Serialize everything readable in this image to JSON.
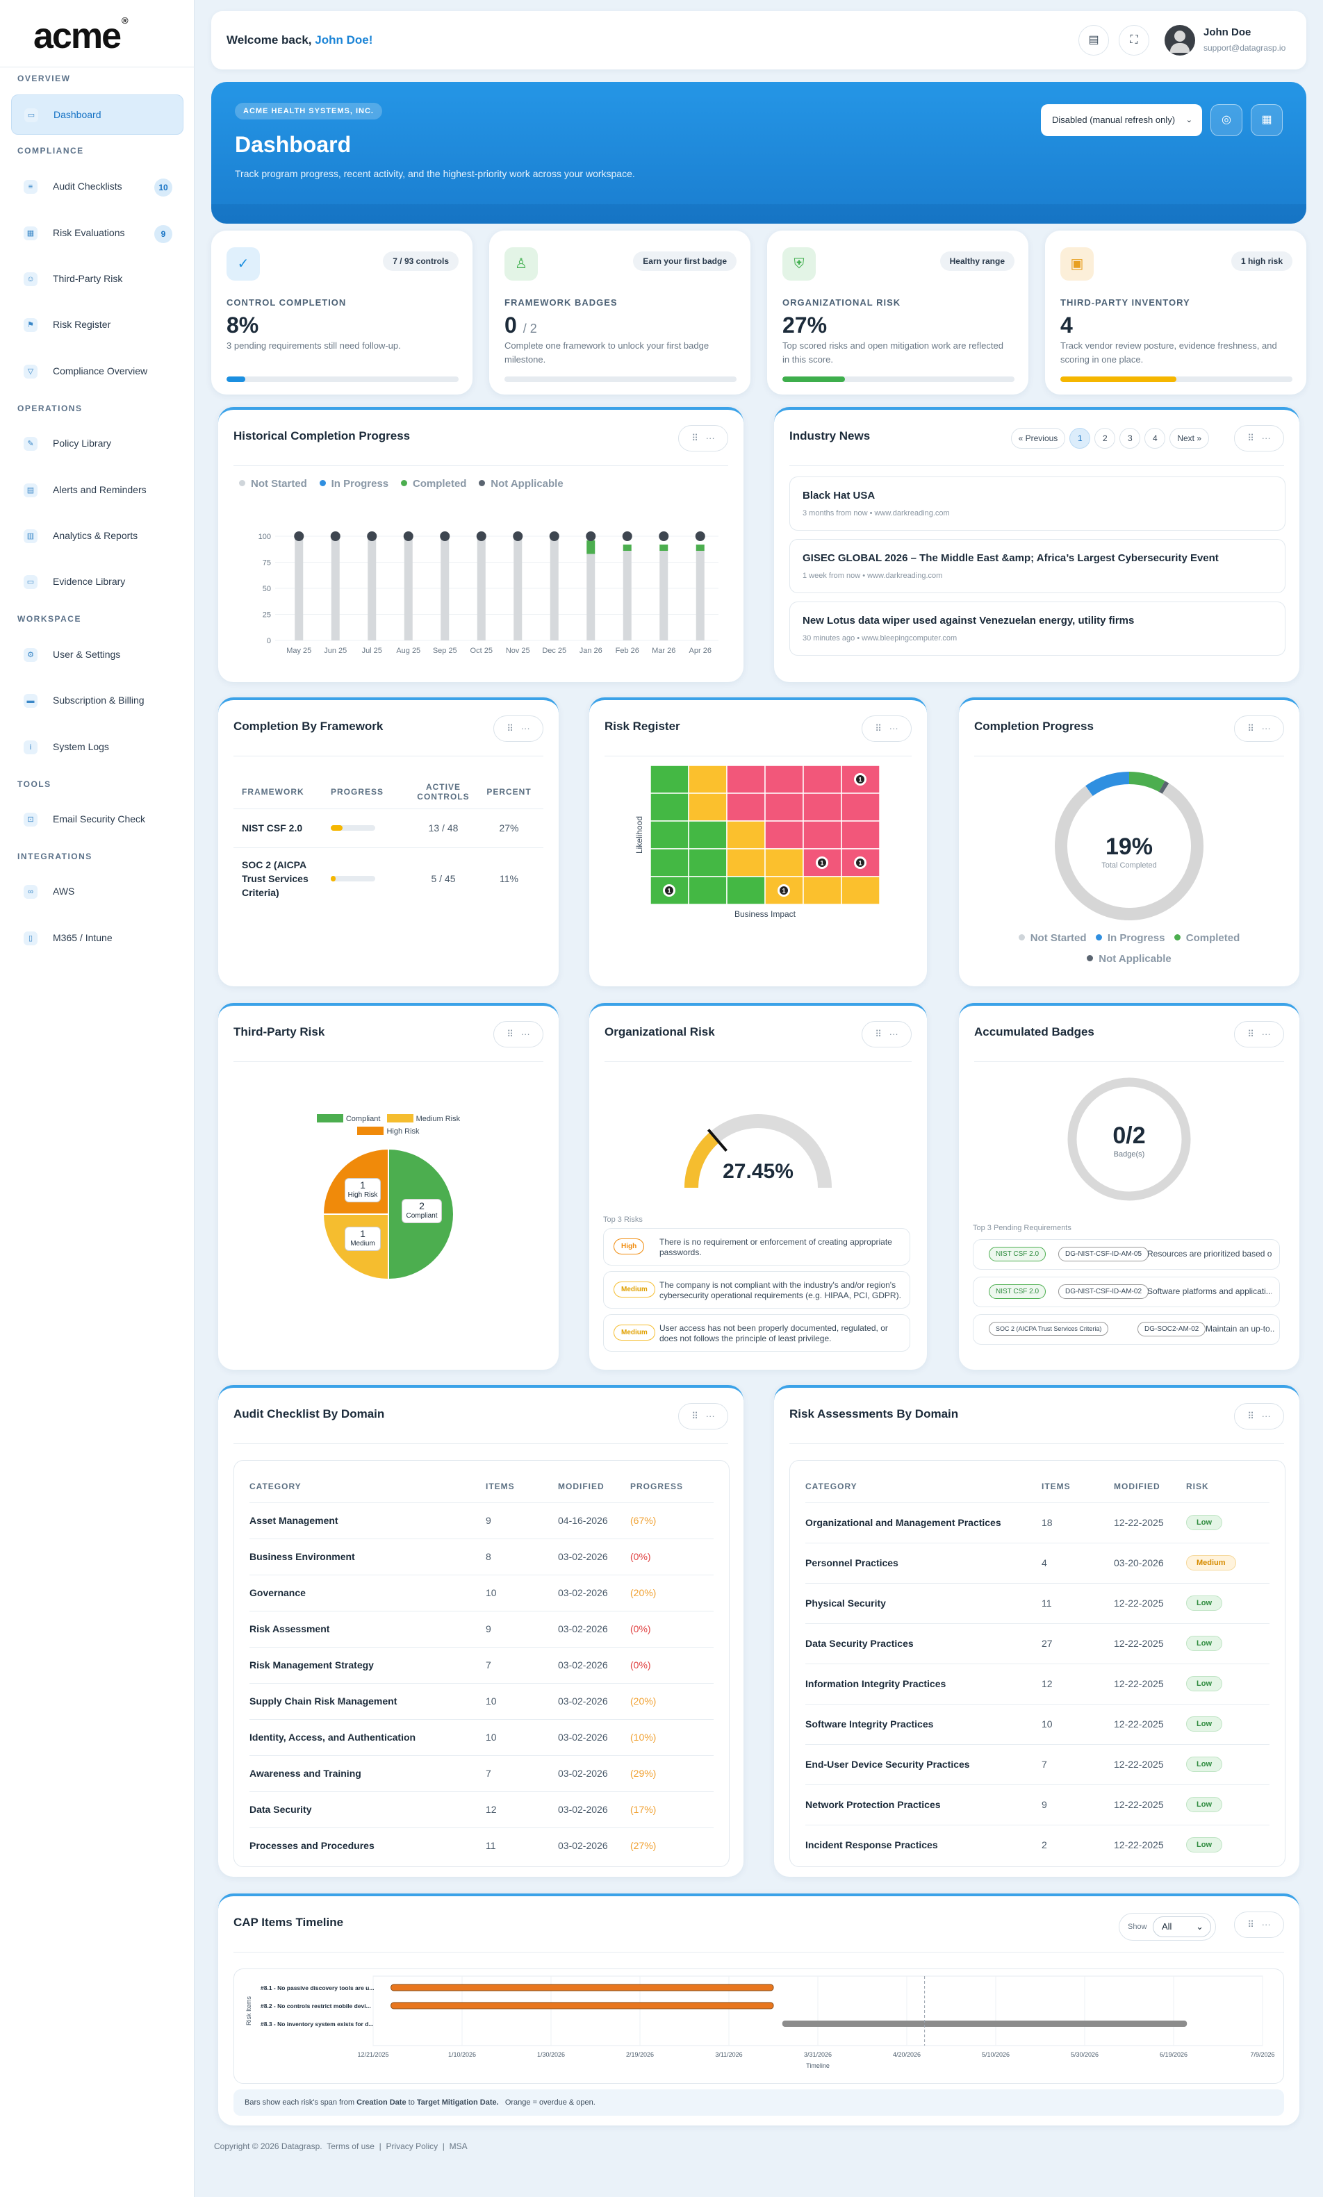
{
  "brand": {
    "name": "acme",
    "mark": "®"
  },
  "sidebar": {
    "sections": [
      {
        "title": "OVERVIEW",
        "items": [
          {
            "label": "Dashboard"
          }
        ]
      },
      {
        "title": "COMPLIANCE",
        "items": [
          {
            "label": "Audit Checklists",
            "badge": "10"
          },
          {
            "label": "Risk Evaluations",
            "badge": "9"
          },
          {
            "label": "Third-Party Risk"
          },
          {
            "label": "Risk Register"
          },
          {
            "label": "Compliance Overview"
          }
        ]
      },
      {
        "title": "OPERATIONS",
        "items": [
          {
            "label": "Policy Library"
          },
          {
            "label": "Alerts and Reminders"
          },
          {
            "label": "Analytics & Reports"
          },
          {
            "label": "Evidence Library"
          }
        ]
      },
      {
        "title": "WORKSPACE",
        "items": [
          {
            "label": "User & Settings"
          },
          {
            "label": "Subscription & Billing"
          },
          {
            "label": "System Logs"
          }
        ]
      },
      {
        "title": "TOOLS",
        "items": [
          {
            "label": "Email Security Check"
          }
        ]
      },
      {
        "title": "INTEGRATIONS",
        "items": [
          {
            "label": "AWS"
          },
          {
            "label": "M365 / Intune"
          }
        ]
      }
    ]
  },
  "topbar": {
    "welcome": "Welcome back,",
    "user_link": "John Doe!",
    "user_name": "John Doe",
    "user_email": "support@datagrasp.io"
  },
  "hero": {
    "org": "ACME HEALTH SYSTEMS, INC.",
    "title": "Dashboard",
    "subtitle": "Track program progress, recent activity, and the highest-priority work across your workspace.",
    "refresh_select": "Disabled (manual refresh only)",
    "accent": "#1b84d6"
  },
  "kpis": [
    {
      "badge": "7 / 93 controls",
      "label": "CONTROL COMPLETION",
      "value": "8%",
      "sub": "3 pending requirements still need follow-up.",
      "progress": 0.08,
      "color": "#1b8fe0",
      "icon_bg": "#e0f0fc"
    },
    {
      "badge": "Earn your first badge",
      "label": "FRAMEWORK BADGES",
      "value": "0",
      "value_suffix": "/ 2",
      "sub": "Complete one framework to unlock your first badge milestone.",
      "progress": 0.0,
      "color": "#3eae4c",
      "icon_bg": "#e3f4e6"
    },
    {
      "badge": "Healthy range",
      "label": "ORGANIZATIONAL RISK",
      "value": "27%",
      "sub": "Top scored risks and open mitigation work are reflected in this score.",
      "progress": 0.27,
      "color": "#3eae4c",
      "icon_bg": "#e3f4e6"
    },
    {
      "badge": "1 high risk",
      "label": "THIRD-PARTY INVENTORY",
      "value": "4",
      "sub": "Track vendor review posture, evidence freshness, and scoring in one place.",
      "progress": 0.5,
      "color": "#f5b600",
      "icon_bg": "#fcefd9"
    }
  ],
  "historical": {
    "title": "Historical Completion Progress",
    "legend": [
      "Not Started",
      "In Progress",
      "Completed",
      "Not Applicable"
    ],
    "legend_colors": [
      "#cfd5da",
      "#2f8fe0",
      "#4cae4f",
      "#5a6470"
    ],
    "chart_data": {
      "type": "bar",
      "categories": [
        "May 25",
        "Jun 25",
        "Jul 25",
        "Aug 25",
        "Sep 25",
        "Oct 25",
        "Nov 25",
        "Dec 25",
        "Jan 26",
        "Feb 26",
        "Mar 26",
        "Apr 26"
      ],
      "yticks": [
        "100",
        "75",
        "50",
        "25",
        "0"
      ],
      "ylim": [
        0,
        100
      ],
      "series": [
        {
          "name": "Not Started",
          "values": [
            100,
            100,
            100,
            100,
            100,
            100,
            100,
            100,
            83,
            86,
            86,
            86
          ]
        },
        {
          "name": "In Progress",
          "values": [
            0,
            0,
            0,
            0,
            0,
            0,
            0,
            0,
            0,
            0,
            0,
            0
          ]
        },
        {
          "name": "Completed",
          "values": [
            0,
            0,
            0,
            0,
            0,
            0,
            0,
            0,
            13,
            6,
            6,
            6
          ]
        },
        {
          "name": "Not Applicable",
          "values": [
            0,
            0,
            0,
            0,
            0,
            0,
            0,
            0,
            0,
            0,
            0,
            0
          ]
        }
      ]
    }
  },
  "news": {
    "title": "Industry News",
    "prev": "« Previous",
    "next": "Next »",
    "pages": [
      "1",
      "2",
      "3",
      "4"
    ],
    "items": [
      {
        "title": "Black Hat USA",
        "meta": "3 months from now  •  www.darkreading.com"
      },
      {
        "title": "GISEC GLOBAL 2026 – The Middle East &amp; Africa’s Largest Cybersecurity Event",
        "meta": "1 week from now  •  www.darkreading.com"
      },
      {
        "title": "New Lotus data wiper used against Venezuelan energy, utility firms",
        "meta": "30 minutes ago  •  www.bleepingcomputer.com"
      }
    ]
  },
  "framework": {
    "title": "Completion By Framework",
    "headers": [
      "FRAMEWORK",
      "PROGRESS",
      "ACTIVE CONTROLS",
      "PERCENT"
    ],
    "rows": [
      {
        "name": "NIST CSF 2.0",
        "controls": "13 / 48",
        "percent": "27%",
        "progress": 0.27
      },
      {
        "name": "SOC 2 (AICPA Trust Services Criteria)",
        "controls": "5 / 45",
        "percent": "11%",
        "progress": 0.11
      }
    ]
  },
  "register": {
    "title": "Risk Register",
    "xlabel": "Business Impact",
    "ylabel": "Likelihood",
    "grid": [
      [
        "g",
        "y",
        "r",
        "r",
        "r",
        "r"
      ],
      [
        "g",
        "y",
        "r",
        "r",
        "r",
        "r"
      ],
      [
        "g",
        "g",
        "y",
        "r",
        "r",
        "r"
      ],
      [
        "g",
        "g",
        "y",
        "y",
        "r",
        "r"
      ],
      [
        "g",
        "g",
        "g",
        "y",
        "y",
        "y"
      ]
    ],
    "markers": [
      {
        "row": 0,
        "col": 5,
        "count": "1"
      },
      {
        "row": 3,
        "col": 4,
        "count": "1"
      },
      {
        "row": 3,
        "col": 5,
        "count": "1"
      },
      {
        "row": 4,
        "col": 0,
        "count": "1"
      },
      {
        "row": 4,
        "col": 3,
        "count": "1"
      }
    ]
  },
  "completion": {
    "title": "Completion Progress",
    "value": "19%",
    "label": "Total Completed",
    "legend": [
      "Not Started",
      "In Progress",
      "Completed",
      "Not Applicable"
    ],
    "chart_data": {
      "type": "pie",
      "labels": [
        "Not Started",
        "In Progress",
        "Completed",
        "Not Applicable"
      ],
      "values": [
        81,
        10,
        8,
        1
      ]
    }
  },
  "thirdparty": {
    "title": "Third-Party Risk",
    "legend": [
      "Compliant",
      "Medium Risk",
      "High Risk"
    ],
    "chart_data": {
      "type": "pie",
      "labels": [
        "Compliant",
        "Medium Risk",
        "High Risk"
      ],
      "values": [
        2,
        1,
        1
      ]
    },
    "slice_labels": [
      {
        "count": "2",
        "name": "Compliant"
      },
      {
        "count": "1",
        "name": "Medium"
      },
      {
        "count": "1",
        "name": "High Risk"
      }
    ]
  },
  "orgrisk": {
    "title": "Organizational Risk",
    "value": "27.45%",
    "gauge": 0.2745,
    "top_label": "Top 3 Risks",
    "risks": [
      {
        "level": "High",
        "text": "There is no requirement or enforcement of creating appropriate passwords."
      },
      {
        "level": "Medium",
        "text": "The company is not compliant with the industry's and/or region's cybersecurity operational requirements (e.g. HIPAA, PCI, GDPR)."
      },
      {
        "level": "Medium",
        "text": "User access has not been properly documented, regulated, or does not follows the principle of least privilege."
      }
    ]
  },
  "badges": {
    "title": "Accumulated Badges",
    "value": "0/2",
    "label": "Badge(s)",
    "top_label": "Top 3 Pending Requirements",
    "reqs": [
      {
        "fw": "NIST CSF 2.0",
        "id": "DG-NIST-CSF-ID-AM-05",
        "text": "Resources are prioritized based o..."
      },
      {
        "fw": "NIST CSF 2.0",
        "id": "DG-NIST-CSF-ID-AM-02",
        "text": "Software platforms and applicati..."
      },
      {
        "fw": "SOC 2 (AICPA Trust Services Criteria)",
        "id": "DG-SOC2-AM-02",
        "text": "Maintain an up-to..."
      }
    ]
  },
  "audit": {
    "title": "Audit Checklist By Domain",
    "headers": [
      "CATEGORY",
      "ITEMS",
      "MODIFIED",
      "PROGRESS"
    ],
    "rows": [
      {
        "c": "Asset Management",
        "i": "9",
        "m": "04-16-2026",
        "p": "(67%)",
        "col": "#f0a030"
      },
      {
        "c": "Business Environment",
        "i": "8",
        "m": "03-02-2026",
        "p": "(0%)",
        "col": "#e04040"
      },
      {
        "c": "Governance",
        "i": "10",
        "m": "03-02-2026",
        "p": "(20%)",
        "col": "#f0a030"
      },
      {
        "c": "Risk Assessment",
        "i": "9",
        "m": "03-02-2026",
        "p": "(0%)",
        "col": "#e04040"
      },
      {
        "c": "Risk Management Strategy",
        "i": "7",
        "m": "03-02-2026",
        "p": "(0%)",
        "col": "#e04040"
      },
      {
        "c": "Supply Chain Risk Management",
        "i": "10",
        "m": "03-02-2026",
        "p": "(20%)",
        "col": "#f0a030"
      },
      {
        "c": "Identity, Access, and Authentication",
        "i": "10",
        "m": "03-02-2026",
        "p": "(10%)",
        "col": "#f0a030"
      },
      {
        "c": "Awareness and Training",
        "i": "7",
        "m": "03-02-2026",
        "p": "(29%)",
        "col": "#f0a030"
      },
      {
        "c": "Data Security",
        "i": "12",
        "m": "03-02-2026",
        "p": "(17%)",
        "col": "#f0a030"
      },
      {
        "c": "Processes and Procedures",
        "i": "11",
        "m": "03-02-2026",
        "p": "(27%)",
        "col": "#f0a030"
      }
    ]
  },
  "assess": {
    "title": "Risk Assessments By Domain",
    "headers": [
      "CATEGORY",
      "ITEMS",
      "MODIFIED",
      "RISK"
    ],
    "rows": [
      {
        "c": "Organizational and Management Practices",
        "i": "18",
        "m": "12-22-2025",
        "r": "Low"
      },
      {
        "c": "Personnel Practices",
        "i": "4",
        "m": "03-20-2026",
        "r": "Medium"
      },
      {
        "c": "Physical Security",
        "i": "11",
        "m": "12-22-2025",
        "r": "Low"
      },
      {
        "c": "Data Security Practices",
        "i": "27",
        "m": "12-22-2025",
        "r": "Low"
      },
      {
        "c": "Information Integrity Practices",
        "i": "12",
        "m": "12-22-2025",
        "r": "Low"
      },
      {
        "c": "Software Integrity Practices",
        "i": "10",
        "m": "12-22-2025",
        "r": "Low"
      },
      {
        "c": "End-User Device Security Practices",
        "i": "7",
        "m": "12-22-2025",
        "r": "Low"
      },
      {
        "c": "Network Protection Practices",
        "i": "9",
        "m": "12-22-2025",
        "r": "Low"
      },
      {
        "c": "Incident Response Practices",
        "i": "2",
        "m": "12-22-2025",
        "r": "Low"
      }
    ]
  },
  "cap": {
    "title": "CAP Items Timeline",
    "show_label": "Show",
    "show_value": "All",
    "ylabel": "Risk Items",
    "xlabel": "Timeline",
    "ticks": [
      "12/21/2025",
      "1/10/2026",
      "1/30/2026",
      "2/19/2026",
      "3/11/2026",
      "3/31/2026",
      "4/20/2026",
      "5/10/2026",
      "5/30/2026",
      "6/19/2026",
      "7/9/2026"
    ],
    "bars": [
      {
        "label": "#8.1 - No passive discovery tools are u...",
        "start": "2025-12-25",
        "end": "2026-03-21",
        "color": "#e8761e"
      },
      {
        "label": "#8.2 - No controls restrict mobile devi...",
        "start": "2025-12-25",
        "end": "2026-03-21",
        "color": "#e8761e"
      },
      {
        "label": "#8.3 - No inventory system exists for d...",
        "start": "2026-03-23",
        "end": "2026-06-22",
        "color": "#8c8c8c"
      }
    ],
    "today": "2026-04-24",
    "note_pre": "Bars show each risk's span from",
    "note_start": "Creation Date",
    "note_mid": "to",
    "note_end": "Target Mitigation Date.",
    "note_post": "Orange = overdue & open."
  },
  "footer": {
    "copyright": "Copyright © 2026 Datagrasp.",
    "links": [
      "Terms of use",
      "Privacy Policy",
      "MSA"
    ]
  }
}
